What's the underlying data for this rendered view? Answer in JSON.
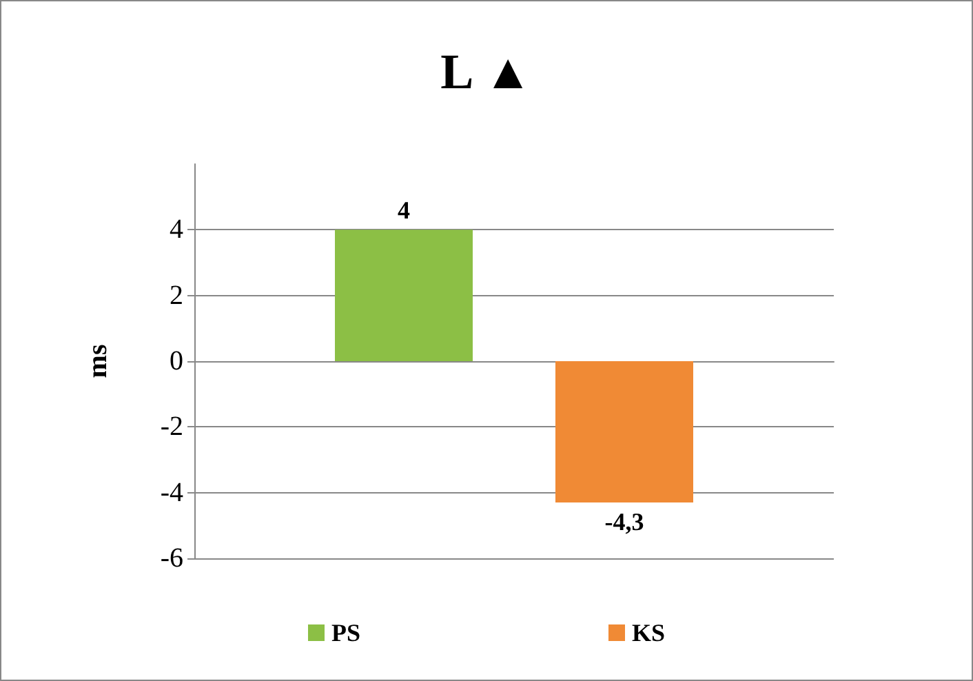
{
  "chart_data": {
    "type": "bar",
    "title": "L ▲",
    "ylabel": "ms",
    "categories": [
      null
    ],
    "series": [
      {
        "name": "PS",
        "color": "#8cbf45",
        "values": [
          4
        ],
        "value_labels": [
          "4"
        ]
      },
      {
        "name": "KS",
        "color": "#f08a35",
        "values": [
          -4.3
        ],
        "value_labels": [
          "-4,3"
        ]
      }
    ],
    "ylim": [
      -6,
      6
    ],
    "yticks": [
      -6,
      -4,
      -2,
      0,
      2,
      4
    ],
    "grid": "y",
    "legend": "bottom"
  }
}
